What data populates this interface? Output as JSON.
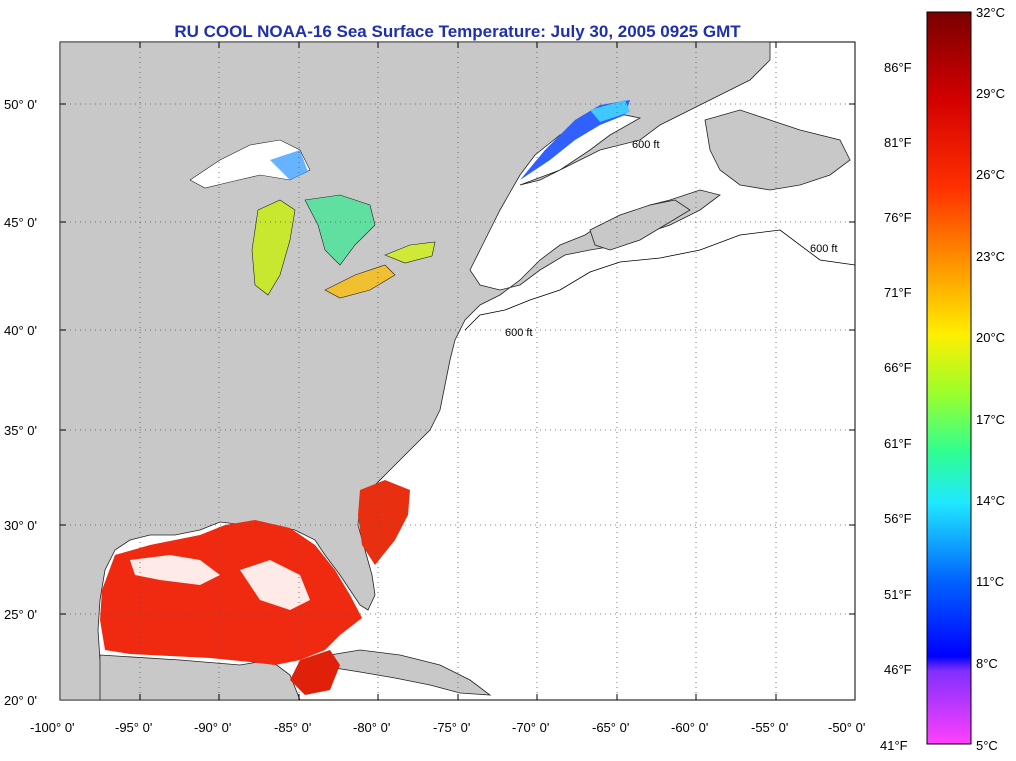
{
  "title": "RU COOL  NOAA-16  Sea Surface Temperature:  July 30, 2005 0925 GMT",
  "map": {
    "lat_labels": [
      "50° 0'",
      "45° 0'",
      "40° 0'",
      "35° 0'",
      "30° 0'",
      "25° 0'",
      "20° 0'"
    ],
    "lon_labels": [
      "-100° 0'",
      "-95° 0'",
      "-90° 0'",
      "-85° 0'",
      "-80° 0'",
      "-75° 0'",
      "-70° 0'",
      "-65° 0'",
      "-60° 0'",
      "-55° 0'",
      "-50° 0'"
    ],
    "contour_label": "600 ft",
    "land_color": "#c8c8c8",
    "ocean_color": "#ffffff"
  },
  "colorbar": {
    "celsius_labels": [
      "32°C",
      "29°C",
      "26°C",
      "23°C",
      "20°C",
      "17°C",
      "14°C",
      "11°C",
      "8°C",
      "5°C"
    ],
    "fahrenheit_labels": [
      "86°F",
      "81°F",
      "76°F",
      "71°F",
      "66°F",
      "61°F",
      "56°F",
      "51°F",
      "46°F",
      "41°F"
    ],
    "colors": [
      "#800000",
      "#cc0000",
      "#ff2a00",
      "#ff8a00",
      "#ffee00",
      "#9aff30",
      "#30ffc0",
      "#00b0ff",
      "#0030ff",
      "#a020ff",
      "#ff40ff"
    ]
  }
}
